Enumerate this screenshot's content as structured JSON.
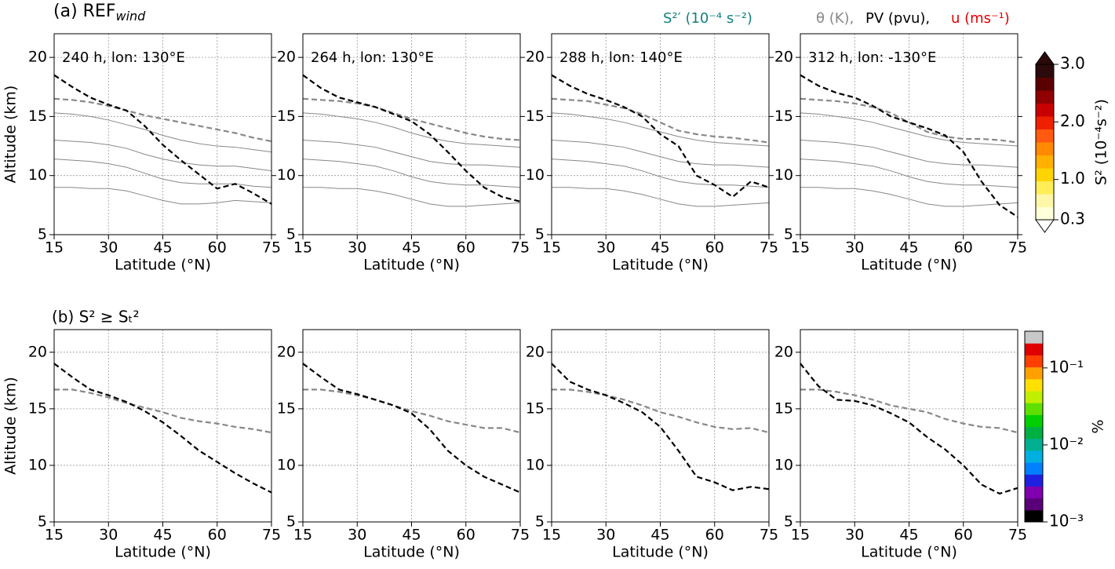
{
  "row_labels": [
    {
      "prefix": "(a) REF",
      "subscript": "wind"
    },
    {
      "prefix": "(b) S² ≥ Sₜ²"
    }
  ],
  "header": {
    "shear": "S²′ (10⁻⁴ s⁻²)",
    "theta": "θ (K),",
    "pv": "PV (pvu),",
    "u": "u (ms⁻¹)"
  },
  "colorbars": [
    {
      "label": "S² (10⁻⁴s⁻²)",
      "lim": [
        0.3,
        3.0
      ],
      "log": false,
      "ticks": [
        0.3,
        {
          "value": 1.0,
          "label": "1.0"
        },
        {
          "value": 2.0,
          "label": "2.0"
        },
        {
          "value": 3.0,
          "label": "3.0"
        }
      ],
      "colors": [
        "#ffffd8",
        "#fff7a8",
        "#ffee58",
        "#ffd400",
        "#ffb000",
        "#ff8a00",
        "#ff5a10",
        "#ee2000",
        "#c80000",
        "#900000",
        "#5a0000",
        "#2a0a0a"
      ]
    },
    {
      "label": "%",
      "lim": [
        0.001,
        0.3
      ],
      "log": true,
      "ticks": [
        {
          "value": 0.001,
          "label": "10⁻³"
        },
        {
          "value": 0.01,
          "label": "10⁻²"
        },
        {
          "value": 0.1,
          "label": "10⁻¹"
        }
      ],
      "colors": [
        "#000000",
        "#5a0078",
        "#8000b0",
        "#2020e0",
        "#0080ff",
        "#00b0e0",
        "#00b090",
        "#00b040",
        "#00d000",
        "#60e000",
        "#c0f000",
        "#ffe000",
        "#ffa000",
        "#ff4000",
        "#e00000",
        "#c8c8c8"
      ]
    }
  ],
  "chart_data": [
    {
      "type": "line",
      "title": "240 h, lon: 130°E",
      "xlabel": "Latitude (°N)",
      "ylabel": "Altitude (km)",
      "x": [
        15,
        20,
        25,
        30,
        35,
        40,
        45,
        50,
        55,
        60,
        65,
        70,
        75
      ],
      "xlim": [
        15,
        75
      ],
      "xticks": [
        15,
        30,
        45,
        60,
        75
      ],
      "ylim": [
        5,
        22
      ],
      "yticks": [
        5,
        10,
        15,
        20
      ],
      "grid": true,
      "series": [
        {
          "color": "#888888",
          "style": "thin",
          "values": [
            15.3,
            15.2,
            15.0,
            14.7,
            14.3,
            13.9,
            13.4,
            13.0,
            12.7,
            12.5,
            12.4,
            12.2,
            12.0
          ]
        },
        {
          "color": "#888888",
          "style": "thin",
          "values": [
            13.0,
            12.9,
            12.8,
            12.6,
            12.3,
            11.8,
            11.4,
            11.1,
            10.9,
            10.8,
            10.8,
            10.6,
            10.4
          ]
        },
        {
          "color": "#888888",
          "style": "thin",
          "values": [
            11.4,
            11.3,
            11.2,
            11.0,
            10.7,
            10.2,
            9.7,
            9.4,
            9.3,
            9.3,
            9.3,
            9.1,
            9.0
          ]
        },
        {
          "color": "#888888",
          "style": "thin",
          "values": [
            9.0,
            9.0,
            8.9,
            8.9,
            8.7,
            8.3,
            7.9,
            7.6,
            7.6,
            7.7,
            7.9,
            7.8,
            7.7
          ]
        },
        {
          "color": "#888888",
          "style": "dashed",
          "values": [
            16.5,
            16.4,
            16.2,
            15.9,
            15.5,
            15.1,
            14.8,
            14.5,
            14.2,
            13.9,
            13.6,
            13.2,
            12.9
          ]
        },
        {
          "color": "#000000",
          "style": "dashed",
          "values": [
            18.5,
            17.5,
            16.6,
            16.0,
            15.5,
            14.2,
            12.6,
            11.3,
            10.1,
            8.9,
            9.3,
            8.5,
            7.6
          ]
        }
      ]
    },
    {
      "type": "line",
      "title": "264 h, lon: 130°E",
      "xlabel": "Latitude (°N)",
      "x": [
        15,
        20,
        25,
        30,
        35,
        40,
        45,
        50,
        55,
        60,
        65,
        70,
        75
      ],
      "xlim": [
        15,
        75
      ],
      "xticks": [
        15,
        30,
        45,
        60,
        75
      ],
      "ylim": [
        5,
        22
      ],
      "yticks": [
        5,
        10,
        15,
        20
      ],
      "grid": true,
      "series": [
        {
          "color": "#888888",
          "style": "thin",
          "values": [
            15.3,
            15.2,
            15.0,
            14.8,
            14.5,
            14.1,
            13.6,
            13.2,
            12.9,
            12.7,
            12.6,
            12.5,
            12.4
          ]
        },
        {
          "color": "#888888",
          "style": "thin",
          "values": [
            13.0,
            12.9,
            12.8,
            12.6,
            12.4,
            12.0,
            11.6,
            11.2,
            11.0,
            10.9,
            10.9,
            10.8,
            10.7
          ]
        },
        {
          "color": "#888888",
          "style": "thin",
          "values": [
            11.4,
            11.3,
            11.2,
            11.0,
            10.8,
            10.4,
            9.9,
            9.5,
            9.3,
            9.2,
            9.2,
            9.1,
            9.0
          ]
        },
        {
          "color": "#888888",
          "style": "thin",
          "values": [
            9.0,
            9.0,
            8.9,
            8.9,
            8.7,
            8.4,
            8.0,
            7.6,
            7.4,
            7.4,
            7.5,
            7.6,
            7.7
          ]
        },
        {
          "color": "#888888",
          "style": "dashed",
          "values": [
            16.5,
            16.4,
            16.3,
            16.1,
            15.8,
            15.3,
            14.8,
            14.4,
            14.0,
            13.6,
            13.3,
            13.1,
            13.0
          ]
        },
        {
          "color": "#000000",
          "style": "dashed",
          "values": [
            18.5,
            17.4,
            16.6,
            16.2,
            15.8,
            15.2,
            14.6,
            13.5,
            12.0,
            10.4,
            9.0,
            8.2,
            7.8
          ]
        }
      ]
    },
    {
      "type": "line",
      "title": "288 h, lon: 140°E",
      "xlabel": "Latitude (°N)",
      "x": [
        15,
        20,
        25,
        30,
        35,
        40,
        45,
        50,
        55,
        60,
        65,
        70,
        75
      ],
      "xlim": [
        15,
        75
      ],
      "xticks": [
        15,
        30,
        45,
        60,
        75
      ],
      "ylim": [
        5,
        22
      ],
      "yticks": [
        5,
        10,
        15,
        20
      ],
      "grid": true,
      "series": [
        {
          "color": "#888888",
          "style": "thin",
          "values": [
            15.3,
            15.2,
            15.0,
            14.8,
            14.5,
            14.1,
            13.7,
            13.3,
            13.0,
            12.8,
            12.7,
            12.6,
            12.5
          ]
        },
        {
          "color": "#888888",
          "style": "thin",
          "values": [
            13.0,
            12.9,
            12.8,
            12.6,
            12.4,
            12.0,
            11.6,
            11.2,
            11.0,
            10.9,
            10.9,
            10.8,
            10.7
          ]
        },
        {
          "color": "#888888",
          "style": "thin",
          "values": [
            11.4,
            11.3,
            11.2,
            11.0,
            10.8,
            10.4,
            9.9,
            9.5,
            9.3,
            9.2,
            9.2,
            9.1,
            9.0
          ]
        },
        {
          "color": "#888888",
          "style": "thin",
          "values": [
            9.0,
            9.0,
            8.9,
            8.9,
            8.7,
            8.4,
            8.0,
            7.6,
            7.4,
            7.4,
            7.5,
            7.6,
            7.7
          ]
        },
        {
          "color": "#888888",
          "style": "dashed",
          "values": [
            16.5,
            16.4,
            16.3,
            16.0,
            15.7,
            15.2,
            14.5,
            13.8,
            13.5,
            13.3,
            13.2,
            13.0,
            12.8
          ]
        },
        {
          "color": "#000000",
          "style": "dashed",
          "values": [
            18.5,
            17.6,
            16.9,
            16.4,
            15.8,
            15.0,
            13.5,
            12.5,
            10.0,
            9.2,
            8.2,
            9.5,
            9.0
          ]
        }
      ]
    },
    {
      "type": "line",
      "title": "312 h, lon: -130°E",
      "xlabel": "Latitude (°N)",
      "x": [
        15,
        20,
        25,
        30,
        35,
        40,
        45,
        50,
        55,
        60,
        65,
        70,
        75
      ],
      "xlim": [
        15,
        75
      ],
      "xticks": [
        15,
        30,
        45,
        60,
        75
      ],
      "ylim": [
        5,
        22
      ],
      "yticks": [
        5,
        10,
        15,
        20
      ],
      "grid": true,
      "series": [
        {
          "color": "#888888",
          "style": "thin",
          "values": [
            15.3,
            15.2,
            15.0,
            14.8,
            14.5,
            14.1,
            13.7,
            13.3,
            13.0,
            12.8,
            12.7,
            12.6,
            12.5
          ]
        },
        {
          "color": "#888888",
          "style": "thin",
          "values": [
            13.0,
            12.9,
            12.8,
            12.6,
            12.4,
            12.0,
            11.6,
            11.2,
            11.0,
            10.9,
            10.9,
            10.8,
            10.7
          ]
        },
        {
          "color": "#888888",
          "style": "thin",
          "values": [
            11.4,
            11.3,
            11.2,
            11.0,
            10.8,
            10.4,
            9.9,
            9.5,
            9.3,
            9.2,
            9.2,
            9.1,
            9.0
          ]
        },
        {
          "color": "#888888",
          "style": "thin",
          "values": [
            9.0,
            9.0,
            8.9,
            8.9,
            8.7,
            8.4,
            8.0,
            7.6,
            7.4,
            7.4,
            7.5,
            7.6,
            7.7
          ]
        },
        {
          "color": "#888888",
          "style": "dashed",
          "values": [
            16.5,
            16.4,
            16.3,
            16.1,
            15.8,
            15.3,
            14.5,
            13.7,
            13.3,
            13.1,
            13.1,
            13.0,
            12.8
          ]
        },
        {
          "color": "#000000",
          "style": "dashed",
          "values": [
            18.5,
            17.6,
            17.0,
            16.6,
            15.9,
            15.0,
            14.5,
            14.0,
            13.4,
            12.0,
            9.5,
            7.5,
            6.5
          ]
        }
      ]
    },
    {
      "type": "line",
      "xlabel": "Latitude (°N)",
      "ylabel": "Altitude (km)",
      "x": [
        15,
        20,
        25,
        30,
        35,
        40,
        45,
        50,
        55,
        60,
        65,
        70,
        75
      ],
      "xlim": [
        15,
        75
      ],
      "xticks": [
        15,
        30,
        45,
        60,
        75
      ],
      "ylim": [
        5,
        22
      ],
      "yticks": [
        5,
        10,
        15,
        20
      ],
      "grid": true,
      "series": [
        {
          "color": "#888888",
          "style": "dashed",
          "values": [
            16.7,
            16.7,
            16.4,
            16.0,
            15.5,
            15.1,
            14.7,
            14.2,
            13.9,
            13.7,
            13.4,
            13.2,
            12.9
          ]
        },
        {
          "color": "#000000",
          "style": "dashed",
          "values": [
            19.0,
            17.8,
            16.7,
            16.2,
            15.6,
            14.8,
            13.8,
            12.6,
            11.3,
            10.3,
            9.3,
            8.4,
            7.6
          ]
        }
      ]
    },
    {
      "type": "line",
      "xlabel": "Latitude (°N)",
      "x": [
        15,
        20,
        25,
        30,
        35,
        40,
        45,
        50,
        55,
        60,
        65,
        70,
        75
      ],
      "xlim": [
        15,
        75
      ],
      "xticks": [
        15,
        30,
        45,
        60,
        75
      ],
      "ylim": [
        5,
        22
      ],
      "yticks": [
        5,
        10,
        15,
        20
      ],
      "grid": true,
      "series": [
        {
          "color": "#888888",
          "style": "dashed",
          "values": [
            16.7,
            16.7,
            16.5,
            16.2,
            15.8,
            15.3,
            14.8,
            14.4,
            13.9,
            13.6,
            13.3,
            13.3,
            12.9
          ]
        },
        {
          "color": "#000000",
          "style": "dashed",
          "values": [
            19.0,
            17.8,
            16.7,
            16.3,
            15.8,
            15.3,
            14.6,
            13.2,
            11.3,
            10.0,
            9.0,
            8.3,
            7.6
          ]
        }
      ]
    },
    {
      "type": "line",
      "xlabel": "Latitude (°N)",
      "x": [
        15,
        20,
        25,
        30,
        35,
        40,
        45,
        50,
        55,
        60,
        65,
        70,
        75
      ],
      "xlim": [
        15,
        75
      ],
      "xticks": [
        15,
        30,
        45,
        60,
        75
      ],
      "ylim": [
        5,
        22
      ],
      "yticks": [
        5,
        10,
        15,
        20
      ],
      "grid": true,
      "series": [
        {
          "color": "#888888",
          "style": "dashed",
          "values": [
            16.7,
            16.7,
            16.5,
            16.2,
            15.8,
            15.3,
            14.7,
            14.3,
            13.8,
            13.4,
            13.2,
            13.3,
            12.9
          ]
        },
        {
          "color": "#000000",
          "style": "dashed",
          "values": [
            19.0,
            17.4,
            16.7,
            16.2,
            15.5,
            14.7,
            13.4,
            11.3,
            9.0,
            8.5,
            7.8,
            8.1,
            7.9
          ]
        }
      ]
    },
    {
      "type": "line",
      "xlabel": "Latitude (°N)",
      "x": [
        15,
        20,
        25,
        30,
        35,
        40,
        45,
        50,
        55,
        60,
        65,
        70,
        75
      ],
      "xlim": [
        15,
        75
      ],
      "xticks": [
        15,
        30,
        45,
        60,
        75
      ],
      "ylim": [
        5,
        22
      ],
      "yticks": [
        5,
        10,
        15,
        20
      ],
      "grid": true,
      "series": [
        {
          "color": "#888888",
          "style": "dashed",
          "values": [
            16.7,
            16.7,
            16.5,
            16.2,
            15.8,
            15.3,
            15.0,
            14.7,
            14.1,
            13.7,
            13.4,
            13.3,
            12.9
          ]
        },
        {
          "color": "#000000",
          "style": "dashed",
          "values": [
            19.0,
            17.0,
            15.8,
            15.7,
            15.3,
            14.6,
            13.8,
            12.5,
            11.4,
            10.0,
            8.3,
            7.5,
            8.0
          ]
        }
      ]
    }
  ]
}
